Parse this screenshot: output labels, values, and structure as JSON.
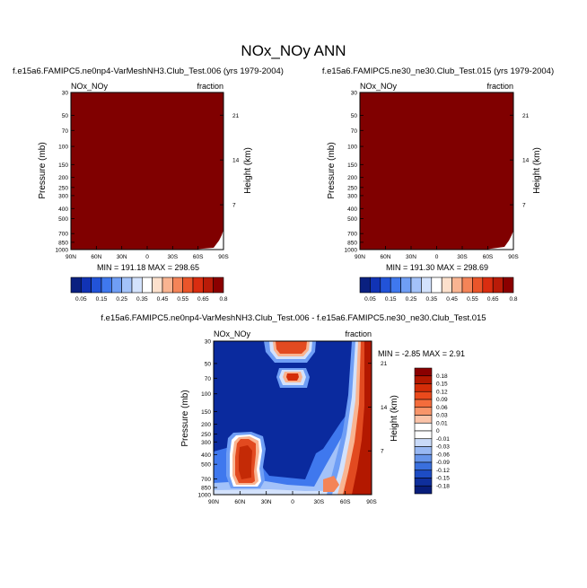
{
  "title": "NOx_NOy ANN",
  "chart_data": [
    {
      "type": "heatmap",
      "subtitle": "f.e15a6.FAMIPC5.ne0np4-VarMeshNH3.Club_Test.006 (yrs 1979-2004)",
      "left_label": "NOx_NOy",
      "right_label": "fraction",
      "ylabel": "Pressure (mb)",
      "ylabel_right": "Height (km)",
      "x_ticks": [
        "90N",
        "60N",
        "30N",
        "0",
        "30S",
        "60S",
        "90S"
      ],
      "y_ticks": [
        "30",
        "50",
        "70",
        "100",
        "150",
        "200",
        "250",
        "300",
        "400",
        "500",
        "700",
        "850",
        "1000"
      ],
      "y_ticks_right": [
        "21",
        "14",
        "7"
      ],
      "xlim": [
        90,
        -90
      ],
      "ylim": [
        1000,
        30
      ],
      "log_pressure": true,
      "stats_text": "MIN = 191.18  MAX = 298.65",
      "fill_color": "#800000",
      "colorbar_labels": [
        "0.05",
        "0.15",
        "0.25",
        "0.35",
        "0.45",
        "0.55",
        "0.65",
        "0.8"
      ],
      "colorbar_colors": [
        "#0a2080",
        "#1133b5",
        "#2253d8",
        "#3f78ee",
        "#6f9ef5",
        "#a3c2f9",
        "#d3e2fc",
        "#ffffff",
        "#fce0cc",
        "#f9b491",
        "#f48458",
        "#ea552a",
        "#d92d10",
        "#b91b08",
        "#8b0000"
      ]
    },
    {
      "type": "heatmap",
      "subtitle": "f.e15a6.FAMIPC5.ne30_ne30.Club_Test.015 (yrs 1979-2004)",
      "left_label": "NOx_NOy",
      "right_label": "fraction",
      "ylabel": "Pressure (mb)",
      "ylabel_right": "Height (km)",
      "x_ticks": [
        "90N",
        "60N",
        "30N",
        "0",
        "30S",
        "60S",
        "90S"
      ],
      "y_ticks": [
        "30",
        "50",
        "70",
        "100",
        "150",
        "200",
        "250",
        "300",
        "400",
        "500",
        "700",
        "850",
        "1000"
      ],
      "y_ticks_right": [
        "21",
        "14",
        "7"
      ],
      "xlim": [
        90,
        -90
      ],
      "ylim": [
        1000,
        30
      ],
      "log_pressure": true,
      "stats_text": "MIN = 191.30  MAX = 298.69",
      "fill_color": "#800000",
      "colorbar_labels": [
        "0.05",
        "0.15",
        "0.25",
        "0.35",
        "0.45",
        "0.55",
        "0.65",
        "0.8"
      ],
      "colorbar_colors": [
        "#0a2080",
        "#1133b5",
        "#2253d8",
        "#3f78ee",
        "#6f9ef5",
        "#a3c2f9",
        "#d3e2fc",
        "#ffffff",
        "#fce0cc",
        "#f9b491",
        "#f48458",
        "#ea552a",
        "#d92d10",
        "#b91b08",
        "#8b0000"
      ]
    },
    {
      "type": "heatmap",
      "subtitle": "f.e15a6.FAMIPC5.ne0np4-VarMeshNH3.Club_Test.006 - f.e15a6.FAMIPC5.ne30_ne30.Club_Test.015",
      "left_label": "NOx_NOy",
      "right_label": "fraction",
      "ylabel": "Pressure (mb)",
      "ylabel_right": "Height (km)",
      "x_ticks": [
        "90N",
        "60N",
        "30N",
        "0",
        "30S",
        "60S",
        "90S"
      ],
      "y_ticks": [
        "30",
        "50",
        "70",
        "100",
        "150",
        "200",
        "250",
        "300",
        "400",
        "500",
        "700",
        "850",
        "1000"
      ],
      "y_ticks_right": [
        "21",
        "14",
        "7"
      ],
      "xlim": [
        90,
        -90
      ],
      "ylim": [
        1000,
        30
      ],
      "log_pressure": true,
      "stats_text": "MIN = -2.85  MAX =  2.91",
      "background_color": "#0a2a9e",
      "colorbar_labels": [
        "0.18",
        "0.15",
        "0.12",
        "0.09",
        "0.06",
        "0.03",
        "0.01",
        "0",
        "-0.01",
        "-0.03",
        "-0.06",
        "-0.09",
        "-0.12",
        "-0.15",
        "-0.18"
      ],
      "colorbar_colors": [
        "#8b0000",
        "#b31800",
        "#d42d08",
        "#ea4a1c",
        "#f46c3c",
        "#f8956a",
        "#fbc3a8",
        "#ffffff",
        "#ffffff",
        "#c9daf8",
        "#98b8f3",
        "#6694ea",
        "#3a6fdd",
        "#1d4cc4",
        "#0f2f9c",
        "#081d7a"
      ]
    }
  ]
}
